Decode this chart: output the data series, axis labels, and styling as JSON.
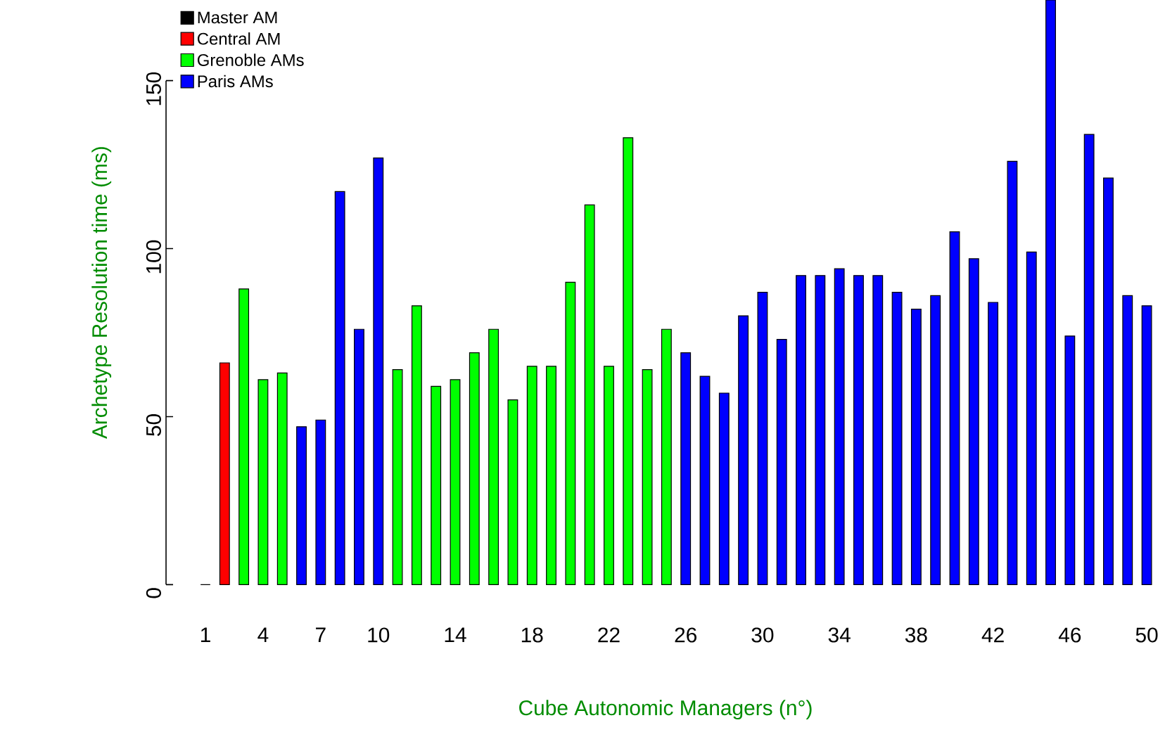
{
  "chart_data": {
    "type": "bar",
    "xlabel": "Cube Autonomic Managers (n°)",
    "ylabel": "Archetype Resolution time (ms)",
    "categories": [
      "1",
      null,
      null,
      "4",
      null,
      null,
      "7",
      null,
      null,
      "10",
      null,
      null,
      null,
      "14",
      null,
      null,
      null,
      "18",
      null,
      null,
      null,
      "22",
      null,
      null,
      null,
      "26",
      null,
      null,
      null,
      "30",
      null,
      null,
      null,
      "34",
      null,
      null,
      null,
      "38",
      null,
      null,
      null,
      "42",
      null,
      null,
      null,
      "46",
      null,
      null,
      null,
      "50"
    ],
    "series": [
      {
        "name": "Master AM",
        "color": "#000000",
        "values": [
          0,
          null,
          null,
          null,
          null,
          null,
          null,
          null,
          null,
          null,
          null,
          null,
          null,
          null,
          null,
          null,
          null,
          null,
          null,
          null,
          null,
          null,
          null,
          null,
          null,
          null,
          null,
          null,
          null,
          null,
          null,
          null,
          null,
          null,
          null,
          null,
          null,
          null,
          null,
          null,
          null,
          null,
          null,
          null,
          null,
          null,
          null,
          null,
          null,
          null
        ]
      },
      {
        "name": "Central AM",
        "color": "#ff0000",
        "values": [
          null,
          66,
          null,
          null,
          null,
          null,
          null,
          null,
          null,
          null,
          null,
          null,
          null,
          null,
          null,
          null,
          null,
          null,
          null,
          null,
          null,
          null,
          null,
          null,
          null,
          null,
          null,
          null,
          null,
          null,
          null,
          null,
          null,
          null,
          null,
          null,
          null,
          null,
          null,
          null,
          null,
          null,
          null,
          null,
          null,
          null,
          null,
          null,
          null,
          null
        ]
      },
      {
        "name": "Grenoble AMs",
        "color": "#00ff00",
        "values": [
          null,
          null,
          88,
          61,
          63,
          null,
          null,
          null,
          null,
          null,
          64,
          83,
          59,
          61,
          69,
          76,
          55,
          65,
          65,
          90,
          113,
          65,
          133,
          64,
          76,
          null,
          null,
          null,
          null,
          null,
          null,
          null,
          null,
          null,
          null,
          null,
          null,
          null,
          null,
          null,
          null,
          null,
          null,
          null,
          null,
          null,
          null,
          null,
          null,
          null
        ]
      },
      {
        "name": "Paris AMs",
        "color": "#0000ff",
        "values": [
          null,
          null,
          null,
          null,
          null,
          47,
          49,
          117,
          76,
          127,
          null,
          null,
          null,
          null,
          null,
          null,
          null,
          null,
          null,
          null,
          null,
          null,
          null,
          null,
          null,
          69,
          62,
          57,
          80,
          87,
          73,
          92,
          92,
          94,
          92,
          92,
          87,
          82,
          86,
          105,
          97,
          84,
          126,
          99,
          174,
          74,
          134,
          121,
          86,
          83
        ]
      }
    ],
    "ylim": [
      0,
      174
    ],
    "yticks": [
      0,
      50,
      100,
      150
    ],
    "legend": "top left",
    "grid": false
  }
}
